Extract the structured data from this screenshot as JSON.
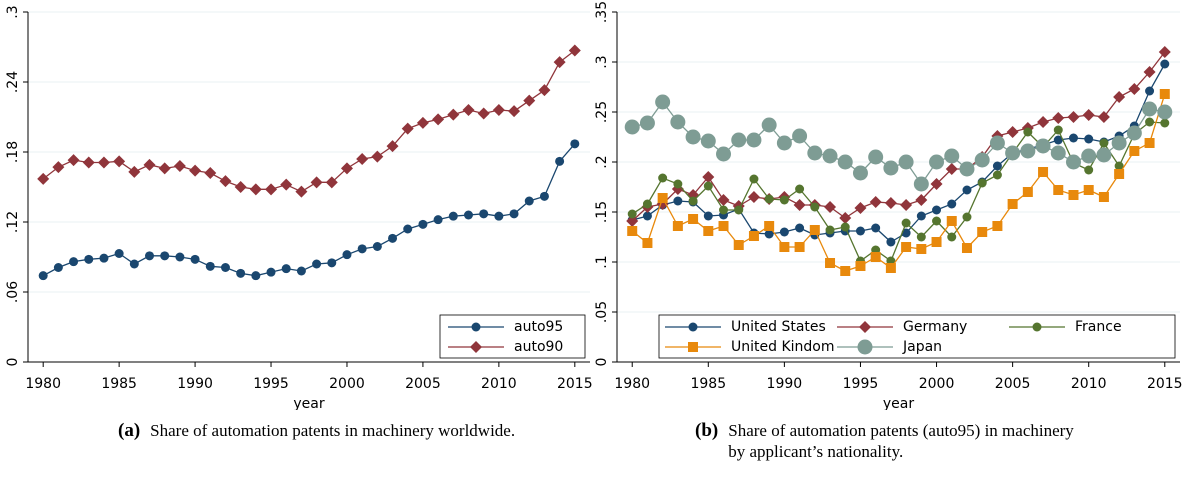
{
  "chart_data": [
    {
      "type": "line",
      "x_label": "year",
      "x": [
        1980,
        1981,
        1982,
        1983,
        1984,
        1985,
        1986,
        1987,
        1988,
        1989,
        1990,
        1991,
        1992,
        1993,
        1994,
        1995,
        1996,
        1997,
        1998,
        1999,
        2000,
        2001,
        2002,
        2003,
        2004,
        2005,
        2006,
        2007,
        2008,
        2009,
        2010,
        2011,
        2012,
        2013,
        2014,
        2015
      ],
      "xlim": [
        1979,
        2016
      ],
      "xticks": [
        1980,
        1985,
        1990,
        1995,
        2000,
        2005,
        2010,
        2015
      ],
      "ylim": [
        0,
        0.3
      ],
      "yticks": [
        0,
        {
          "value": 0.06,
          "label": ".06"
        },
        {
          "value": 0.12,
          "label": ".12"
        },
        {
          "value": 0.18,
          "label": ".18"
        },
        {
          "value": 0.24,
          "label": ".24"
        },
        {
          "value": 0.3,
          "label": ".3"
        }
      ],
      "grid": true,
      "legend": "lower right",
      "series": [
        {
          "name": "auto95",
          "color": "#1a476f",
          "marker": "circle",
          "values": [
            0.074,
            0.081,
            0.086,
            0.088,
            0.089,
            0.093,
            0.084,
            0.091,
            0.091,
            0.09,
            0.088,
            0.082,
            0.081,
            0.076,
            0.074,
            0.077,
            0.08,
            0.078,
            0.084,
            0.085,
            0.092,
            0.097,
            0.099,
            0.106,
            0.114,
            0.118,
            0.122,
            0.125,
            0.126,
            0.127,
            0.125,
            0.127,
            0.138,
            0.142,
            0.172,
            0.187
          ]
        },
        {
          "name": "auto90",
          "color": "#90353b",
          "marker": "diamond",
          "values": [
            0.157,
            0.167,
            0.173,
            0.171,
            0.171,
            0.172,
            0.163,
            0.169,
            0.166,
            0.168,
            0.164,
            0.162,
            0.155,
            0.15,
            0.148,
            0.148,
            0.152,
            0.146,
            0.154,
            0.154,
            0.166,
            0.174,
            0.176,
            0.185,
            0.2,
            0.205,
            0.208,
            0.212,
            0.216,
            0.213,
            0.216,
            0.215,
            0.224,
            0.233,
            0.257,
            0.267
          ]
        }
      ],
      "caption_label": "(a)",
      "caption": "Share of automation patents in machinery worldwide."
    },
    {
      "type": "line",
      "x_label": "year",
      "x": [
        1980,
        1981,
        1982,
        1983,
        1984,
        1985,
        1986,
        1987,
        1988,
        1989,
        1990,
        1991,
        1992,
        1993,
        1994,
        1995,
        1996,
        1997,
        1998,
        1999,
        2000,
        2001,
        2002,
        2003,
        2004,
        2005,
        2006,
        2007,
        2008,
        2009,
        2010,
        2011,
        2012,
        2013,
        2014,
        2015
      ],
      "xlim": [
        1979,
        2016
      ],
      "xticks": [
        1980,
        1985,
        1990,
        1995,
        2000,
        2005,
        2010,
        2015
      ],
      "ylim": [
        0,
        0.35
      ],
      "yticks": [
        0,
        {
          "value": 0.05,
          "label": ".05"
        },
        {
          "value": 0.1,
          "label": ".1"
        },
        {
          "value": 0.15,
          "label": ".15"
        },
        {
          "value": 0.2,
          "label": ".2"
        },
        {
          "value": 0.25,
          "label": ".25"
        },
        {
          "value": 0.3,
          "label": ".3"
        },
        {
          "value": 0.35,
          "label": ".35"
        }
      ],
      "grid": true,
      "legend": "bottom",
      "series": [
        {
          "name": "United States",
          "color": "#1a476f",
          "marker": "circle",
          "values": [
            0.142,
            0.146,
            0.157,
            0.161,
            0.16,
            0.146,
            0.147,
            0.153,
            0.129,
            0.128,
            0.13,
            0.134,
            0.127,
            0.129,
            0.131,
            0.131,
            0.134,
            0.12,
            0.129,
            0.146,
            0.152,
            0.158,
            0.172,
            0.18,
            0.196,
            0.209,
            0.213,
            0.217,
            0.222,
            0.224,
            0.223,
            0.22,
            0.226,
            0.236,
            0.271,
            0.298
          ]
        },
        {
          "name": "Germany",
          "color": "#90353b",
          "marker": "diamond",
          "values": [
            0.141,
            0.155,
            0.158,
            0.173,
            0.167,
            0.185,
            0.162,
            0.156,
            0.165,
            0.163,
            0.165,
            0.157,
            0.157,
            0.155,
            0.144,
            0.154,
            0.16,
            0.159,
            0.157,
            0.162,
            0.178,
            0.193,
            0.193,
            0.205,
            0.226,
            0.23,
            0.234,
            0.24,
            0.244,
            0.245,
            0.247,
            0.245,
            0.265,
            0.273,
            0.29,
            0.31
          ]
        },
        {
          "name": "France",
          "color": "#55752f",
          "marker": "circle",
          "values": [
            0.148,
            0.158,
            0.184,
            0.178,
            0.161,
            0.176,
            0.152,
            0.152,
            0.183,
            0.163,
            0.162,
            0.173,
            0.155,
            0.132,
            0.135,
            0.101,
            0.112,
            0.101,
            0.139,
            0.125,
            0.141,
            0.125,
            0.145,
            0.179,
            0.187,
            0.209,
            0.23,
            0.215,
            0.232,
            0.199,
            0.192,
            0.219,
            0.196,
            0.228,
            0.24,
            0.239
          ]
        },
        {
          "name": "United Kindom",
          "color": "#e8890c",
          "marker": "square",
          "values": [
            0.131,
            0.119,
            0.164,
            0.136,
            0.143,
            0.131,
            0.136,
            0.117,
            0.126,
            0.136,
            0.115,
            0.115,
            0.132,
            0.099,
            0.091,
            0.096,
            0.105,
            0.094,
            0.115,
            0.113,
            0.12,
            0.141,
            0.114,
            0.13,
            0.136,
            0.158,
            0.17,
            0.19,
            0.172,
            0.167,
            0.172,
            0.165,
            0.188,
            0.211,
            0.219,
            0.268
          ]
        },
        {
          "name": "Japan",
          "color": "#7e9c94",
          "marker": "bigcircle",
          "values": [
            0.235,
            0.239,
            0.26,
            0.24,
            0.225,
            0.221,
            0.208,
            0.222,
            0.222,
            0.237,
            0.219,
            0.226,
            0.209,
            0.206,
            0.2,
            0.189,
            0.205,
            0.194,
            0.2,
            0.178,
            0.2,
            0.206,
            0.193,
            0.202,
            0.219,
            0.209,
            0.211,
            0.216,
            0.209,
            0.2,
            0.206,
            0.207,
            0.219,
            0.229,
            0.253,
            0.25
          ]
        }
      ],
      "caption_label": "(b)",
      "caption": "Share of automation patents (auto95) in machinery by applicant’s nationality."
    }
  ]
}
